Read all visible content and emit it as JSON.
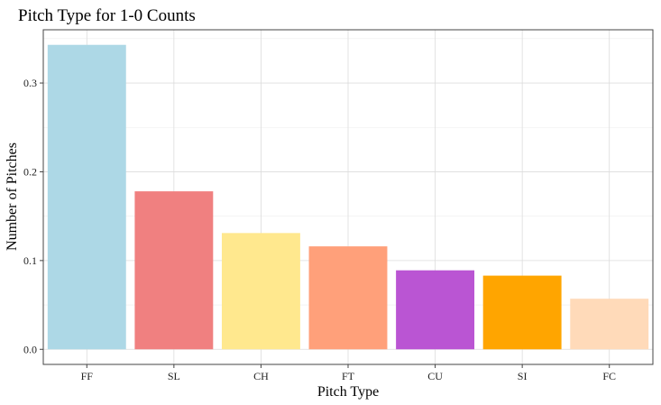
{
  "chart_data": {
    "type": "bar",
    "title": "Pitch Type for 1-0 Counts",
    "xlabel": "Pitch Type",
    "ylabel": "Number of Pitches",
    "categories": [
      "FF",
      "SL",
      "CH",
      "FT",
      "CU",
      "SI",
      "FC"
    ],
    "values": [
      0.343,
      0.178,
      0.131,
      0.116,
      0.089,
      0.083,
      0.057
    ],
    "colors": [
      "#add8e6",
      "#f08080",
      "#ffe88e",
      "#ffa07a",
      "#ba55d3",
      "#ffa500",
      "#ffdab9"
    ],
    "ylim": [
      -0.017,
      0.36
    ],
    "yticks": [
      0.0,
      0.1,
      0.2,
      0.3
    ],
    "ytick_labels": [
      "0.0",
      "0.1",
      "0.2",
      "0.3"
    ],
    "grid": true,
    "legend": "none"
  }
}
